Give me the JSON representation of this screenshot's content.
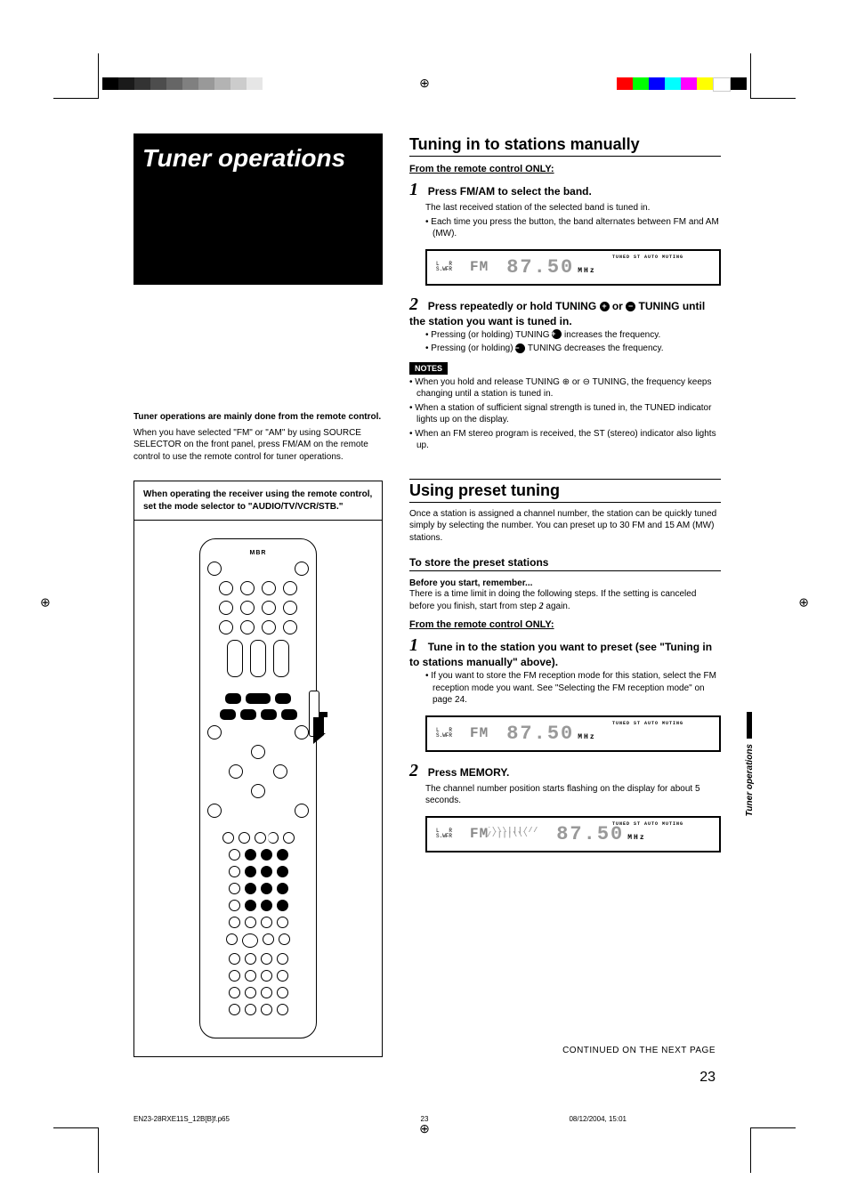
{
  "print_marks": {
    "color_swatches_left": [
      "#000000",
      "#1a1a1a",
      "#333333",
      "#4d4d4d",
      "#666666",
      "#808080",
      "#999999",
      "#b3b3b3",
      "#cccccc",
      "#e6e6e6"
    ],
    "color_swatches_right": [
      "#ff0000",
      "#00ff00",
      "#0000ff",
      "#00ffff",
      "#ff00ff",
      "#ffff00",
      "#ffffff",
      "#000000"
    ],
    "reg_symbol": "⊕"
  },
  "left": {
    "title": "Tuner operations",
    "intro_bold": "Tuner operations are mainly done from the remote control.",
    "intro_text": "When you have selected \"FM\" or \"AM\" by using SOURCE SELECTOR on the front panel, press FM/AM on the remote control to use the remote control for tuner operations.",
    "mode_note": "When operating the receiver using the remote control, set the mode selector to \"AUDIO/TV/VCR/STB.\"",
    "remote_logo": "MBR"
  },
  "right": {
    "section1": {
      "heading": "Tuning in to stations manually",
      "sub": "From the remote control ONLY:",
      "step1": {
        "num": "1",
        "title": "Press FM/AM to select the band.",
        "body": "The last received station of the selected band is tuned in.",
        "bullet": "Each time you press the button, the band alternates between FM and AM (MW)."
      },
      "step2": {
        "num": "2",
        "title_a": "Press repeatedly or hold TUNING ",
        "title_b": " or ",
        "title_c": " TUNING until the station you want is tuned in.",
        "bullet1_a": "Pressing (or holding) TUNING ",
        "bullet1_b": " increases the frequency.",
        "bullet2_a": "Pressing (or holding) ",
        "bullet2_b": " TUNING decreases the frequency."
      },
      "notes_label": "NOTES",
      "notes": [
        "When you hold and release TUNING ⊕ or ⊖ TUNING, the frequency keeps changing until a station is tuned in.",
        "When a station of sufficient signal strength is tuned in, the TUNED indicator lights up on the display.",
        "When an FM stereo program is received, the ST (stereo) indicator also lights up."
      ]
    },
    "section2": {
      "heading": "Using preset tuning",
      "intro": "Once a station is assigned a channel number, the station can be quickly tuned simply by selecting the number. You can preset up to 30 FM and 15 AM (MW) stations.",
      "to_store": "To store the preset stations",
      "before_label": "Before you start, remember...",
      "before_text_a": "There is a time limit in doing the following steps. If the setting is canceled before you finish, start from step ",
      "before_step_ref": "2",
      "before_text_b": " again.",
      "sub": "From the remote control ONLY:",
      "step1": {
        "num": "1",
        "title": "Tune in to the station you want to preset (see \"Tuning in to stations manually\" above).",
        "bullet": "If you want to store the FM reception mode for this station, select the FM reception mode you want. See \"Selecting the FM reception mode\" on page 24."
      },
      "step2": {
        "num": "2",
        "title": "Press MEMORY.",
        "body": "The channel number position starts flashing on the display for about 5 seconds."
      }
    },
    "display": {
      "lsr": "L   R\nS.WFR",
      "band": "FM",
      "freq": "87.50",
      "unit": "MHz",
      "indicators": "TUNED  ST  AUTO MUTING"
    }
  },
  "side_tab": "Tuner operations",
  "footer": {
    "continued": "CONTINUED ON THE NEXT PAGE",
    "page_num": "23",
    "file": "EN23-28RXE11S_12B[B]f.p65",
    "file_page": "23",
    "timestamp": "08/12/2004, 15:01"
  }
}
